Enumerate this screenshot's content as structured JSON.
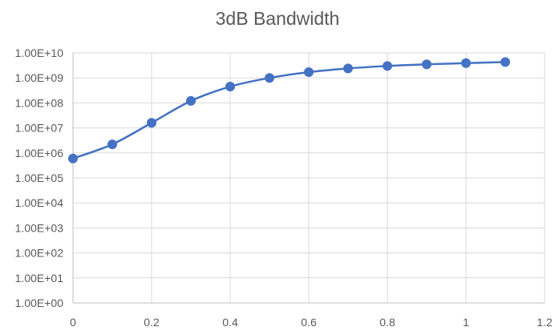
{
  "chart_data": {
    "type": "scatter",
    "title": "3dB Bandwidth",
    "xlabel": "",
    "ylabel": "",
    "x_scale": "linear",
    "y_scale": "log",
    "xlim": [
      0,
      1.2
    ],
    "ylim": [
      1,
      10000000000
    ],
    "grid": {
      "vertical": true,
      "horizontal": true
    },
    "legend": "none",
    "x_ticks": [
      "0",
      "0.2",
      "0.4",
      "0.6",
      "0.8",
      "1",
      "1.2"
    ],
    "x_tick_values": [
      0,
      0.2,
      0.4,
      0.6,
      0.8,
      1.0,
      1.2
    ],
    "y_ticks": [
      "1.00E+00",
      "1.00E+01",
      "1.00E+02",
      "1.00E+03",
      "1.00E+04",
      "1.00E+05",
      "1.00E+06",
      "1.00E+07",
      "1.00E+08",
      "1.00E+09",
      "1.00E+10"
    ],
    "y_tick_values": [
      1,
      10,
      100,
      1000,
      10000,
      100000,
      1000000,
      10000000,
      100000000,
      1000000000,
      10000000000
    ],
    "series": [
      {
        "color": "#4472C4",
        "marker": "circle",
        "line": "smooth",
        "x": [
          0,
          0.1,
          0.2,
          0.3,
          0.4,
          0.5,
          0.6,
          0.7,
          0.8,
          0.9,
          1.0,
          1.1
        ],
        "y": [
          600000,
          2200000,
          16000000,
          120000000,
          450000000,
          1000000000,
          1700000000,
          2400000000,
          3000000000,
          3500000000,
          3900000000,
          4300000000
        ]
      }
    ]
  }
}
